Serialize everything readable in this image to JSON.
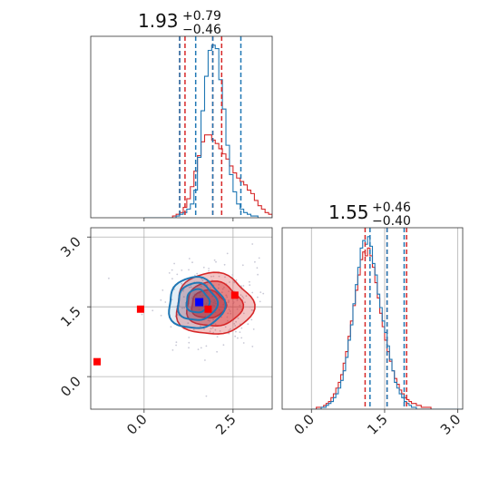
{
  "colors": {
    "blue": "#1f77b4",
    "red": "#d62728",
    "marker_red": "#ff0000",
    "marker_blue": "#0000ff"
  },
  "panels": {
    "top_left": {
      "title_value": "1.93",
      "title_plus": "+0.79",
      "title_minus": "−0.46"
    },
    "bottom_right": {
      "title_value": "1.55",
      "title_plus": "+0.46",
      "title_minus": "−0.40"
    }
  },
  "chart_data": [
    {
      "type": "histogram",
      "panel": "top-left",
      "xlim": [
        -1.5,
        3.6
      ],
      "quantile_lines": {
        "blue": [
          1.0,
          1.45,
          1.93,
          2.72
        ],
        "red": [
          1.0,
          1.15,
          1.93,
          2.18
        ]
      },
      "series": [
        {
          "color": "blue",
          "bin_start": 0.0,
          "bin_width": 0.1,
          "counts": [
            0,
            0,
            0,
            0,
            0,
            0,
            0,
            0,
            0,
            1,
            2,
            3,
            5,
            8,
            16,
            35,
            62,
            82,
            97,
            100,
            98,
            80,
            63,
            42,
            25,
            15,
            8,
            5,
            3,
            2,
            1,
            1,
            0,
            0,
            0,
            0
          ]
        },
        {
          "color": "red",
          "bin_start": 0.0,
          "bin_width": 0.1,
          "counts": [
            0,
            0,
            0,
            0,
            0,
            0,
            0,
            0,
            1,
            2,
            3,
            6,
            11,
            18,
            27,
            36,
            44,
            48,
            48,
            45,
            43,
            40,
            37,
            34,
            30,
            26,
            23,
            21,
            19,
            16,
            14,
            10,
            7,
            5,
            3,
            2
          ]
        }
      ]
    },
    {
      "type": "scatter-contour",
      "panel": "bottom-left",
      "xlim": [
        -1.5,
        3.6
      ],
      "ylim": [
        -0.7,
        3.2
      ],
      "x_ticks": [
        "0.0",
        "2.5"
      ],
      "y_ticks": [
        "0.0",
        "1.5",
        "3.0"
      ],
      "reference_lines": {
        "x": [
          0.0,
          2.5
        ],
        "y": [
          0.0,
          1.5,
          3.0
        ]
      },
      "red_markers": [
        [
          -1.7,
          0.32
        ],
        [
          -0.1,
          1.45
        ],
        [
          1.8,
          1.45
        ],
        [
          2.55,
          1.75
        ]
      ],
      "blue_marker": [
        1.55,
        1.6
      ],
      "red_contours": [
        {
          "cx": 1.95,
          "cy": 1.55,
          "rx": 1.08,
          "ry": 0.66,
          "alpha": 0.5
        },
        {
          "cx": 1.95,
          "cy": 1.55,
          "rx": 0.78,
          "ry": 0.48,
          "alpha": 0.75
        },
        {
          "cx": 1.8,
          "cy": 1.55,
          "rx": 0.48,
          "ry": 0.3,
          "alpha": 0.95
        }
      ],
      "blue_contours": [
        {
          "cx": 1.45,
          "cy": 1.57,
          "rx": 0.78,
          "ry": 0.55
        },
        {
          "cx": 1.48,
          "cy": 1.6,
          "rx": 0.55,
          "ry": 0.4
        },
        {
          "cx": 1.5,
          "cy": 1.62,
          "rx": 0.32,
          "ry": 0.25
        }
      ]
    },
    {
      "type": "histogram",
      "panel": "bottom-right",
      "xlim": [
        -0.6,
        3.1
      ],
      "x_ticks": [
        "0.0",
        "1.5",
        "3.0"
      ],
      "reference_lines": {
        "x": [
          0.0,
          1.5,
          3.0
        ]
      },
      "quantile_lines": {
        "blue": [
          1.2,
          1.55,
          1.9
        ],
        "red": [
          1.1,
          1.55,
          1.95
        ]
      },
      "series": [
        {
          "color": "blue",
          "bin_start": 0.0,
          "bin_width": 0.05,
          "counts": [
            0,
            0,
            0,
            0,
            1,
            1,
            2,
            3,
            4,
            6,
            8,
            11,
            15,
            20,
            27,
            36,
            44,
            55,
            65,
            74,
            84,
            88,
            86,
            90,
            85,
            76,
            70,
            60,
            53,
            46,
            40,
            33,
            26,
            20,
            14,
            11,
            8,
            6,
            4,
            3,
            2,
            1,
            1,
            0,
            0,
            0,
            0,
            0,
            0,
            0,
            0,
            0,
            0,
            0,
            0,
            0,
            0,
            0,
            0,
            0,
            0,
            0
          ]
        },
        {
          "color": "red",
          "bin_start": 0.0,
          "bin_width": 0.05,
          "counts": [
            0,
            0,
            1,
            1,
            1,
            2,
            3,
            4,
            6,
            8,
            11,
            14,
            18,
            24,
            30,
            38,
            46,
            54,
            62,
            70,
            78,
            82,
            80,
            84,
            80,
            74,
            66,
            58,
            50,
            43,
            36,
            30,
            25,
            20,
            16,
            13,
            10,
            8,
            6,
            5,
            4,
            3,
            3,
            2,
            2,
            1,
            1,
            1,
            1,
            0,
            0,
            0,
            0,
            0,
            0,
            0,
            0,
            0,
            0,
            0,
            0,
            0
          ]
        }
      ]
    }
  ]
}
